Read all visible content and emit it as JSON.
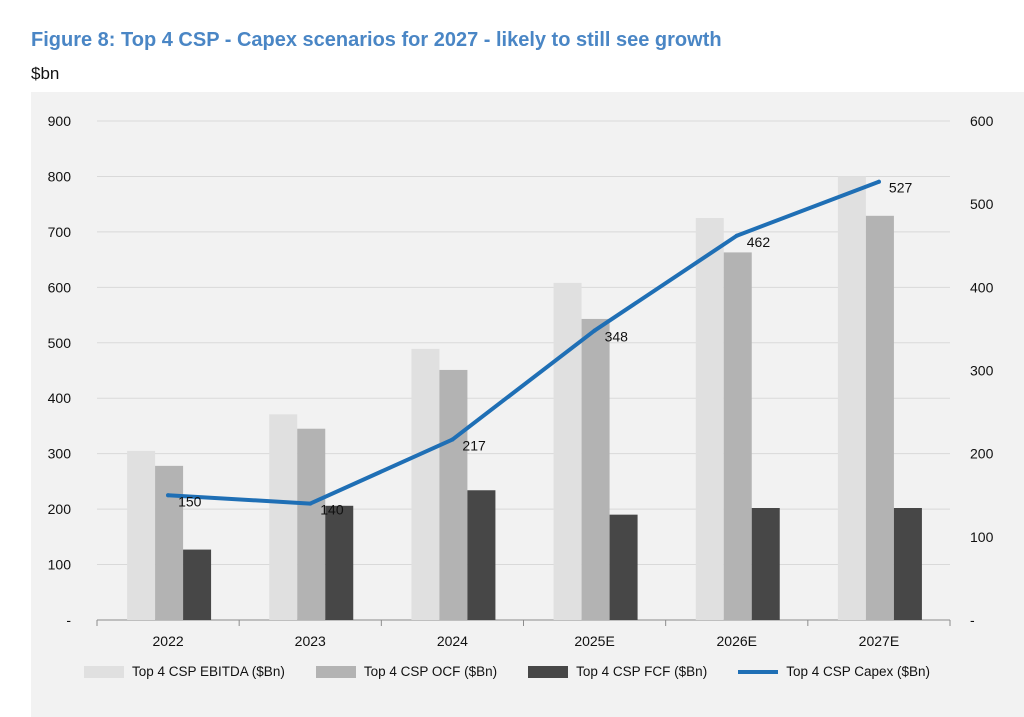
{
  "title": "Figure 8: Top 4 CSP - Capex scenarios for 2027 - likely to still see growth",
  "unit": "$bn",
  "colors": {
    "title": "#4a86c5",
    "ebitda": "#e0e0e0",
    "ocf": "#b3b3b3",
    "fcf": "#474747",
    "capex": "#1f6fb5",
    "grid": "#d9d9d9",
    "background": "#f2f2f2"
  },
  "chart_data": {
    "type": "bar",
    "title": "Figure 8: Top 4 CSP - Capex scenarios for 2027 - likely to still see growth",
    "ylabel": "$bn",
    "categories": [
      "2022",
      "2023",
      "2024",
      "2025E",
      "2026E",
      "2027E"
    ],
    "series": [
      {
        "name": "Top 4 CSP EBITDA ($Bn)",
        "type": "bar",
        "axis": "left",
        "color": "#e0e0e0",
        "values": [
          305,
          371,
          489,
          608,
          725,
          800
        ]
      },
      {
        "name": "Top 4 CSP OCF ($Bn)",
        "type": "bar",
        "axis": "left",
        "color": "#b3b3b3",
        "values": [
          278,
          345,
          451,
          543,
          663,
          729
        ]
      },
      {
        "name": "Top 4 CSP FCF ($Bn)",
        "type": "bar",
        "axis": "left",
        "color": "#474747",
        "values": [
          127,
          206,
          234,
          190,
          202,
          202
        ]
      },
      {
        "name": "Top 4 CSP Capex ($Bn)",
        "type": "line",
        "axis": "right",
        "color": "#1f6fb5",
        "values": [
          150,
          140,
          217,
          348,
          462,
          527
        ],
        "data_labels": [
          "150",
          "140",
          "217",
          "348",
          "462",
          "527"
        ]
      }
    ],
    "y_left": {
      "range": [
        0,
        900
      ],
      "ticks": [
        "-",
        "100",
        "200",
        "300",
        "400",
        "500",
        "600",
        "700",
        "800",
        "900"
      ]
    },
    "y_right": {
      "range": [
        0,
        600
      ],
      "ticks": [
        "-",
        "100",
        "200",
        "300",
        "400",
        "500",
        "600"
      ]
    },
    "grid": true,
    "legend_position": "bottom"
  }
}
